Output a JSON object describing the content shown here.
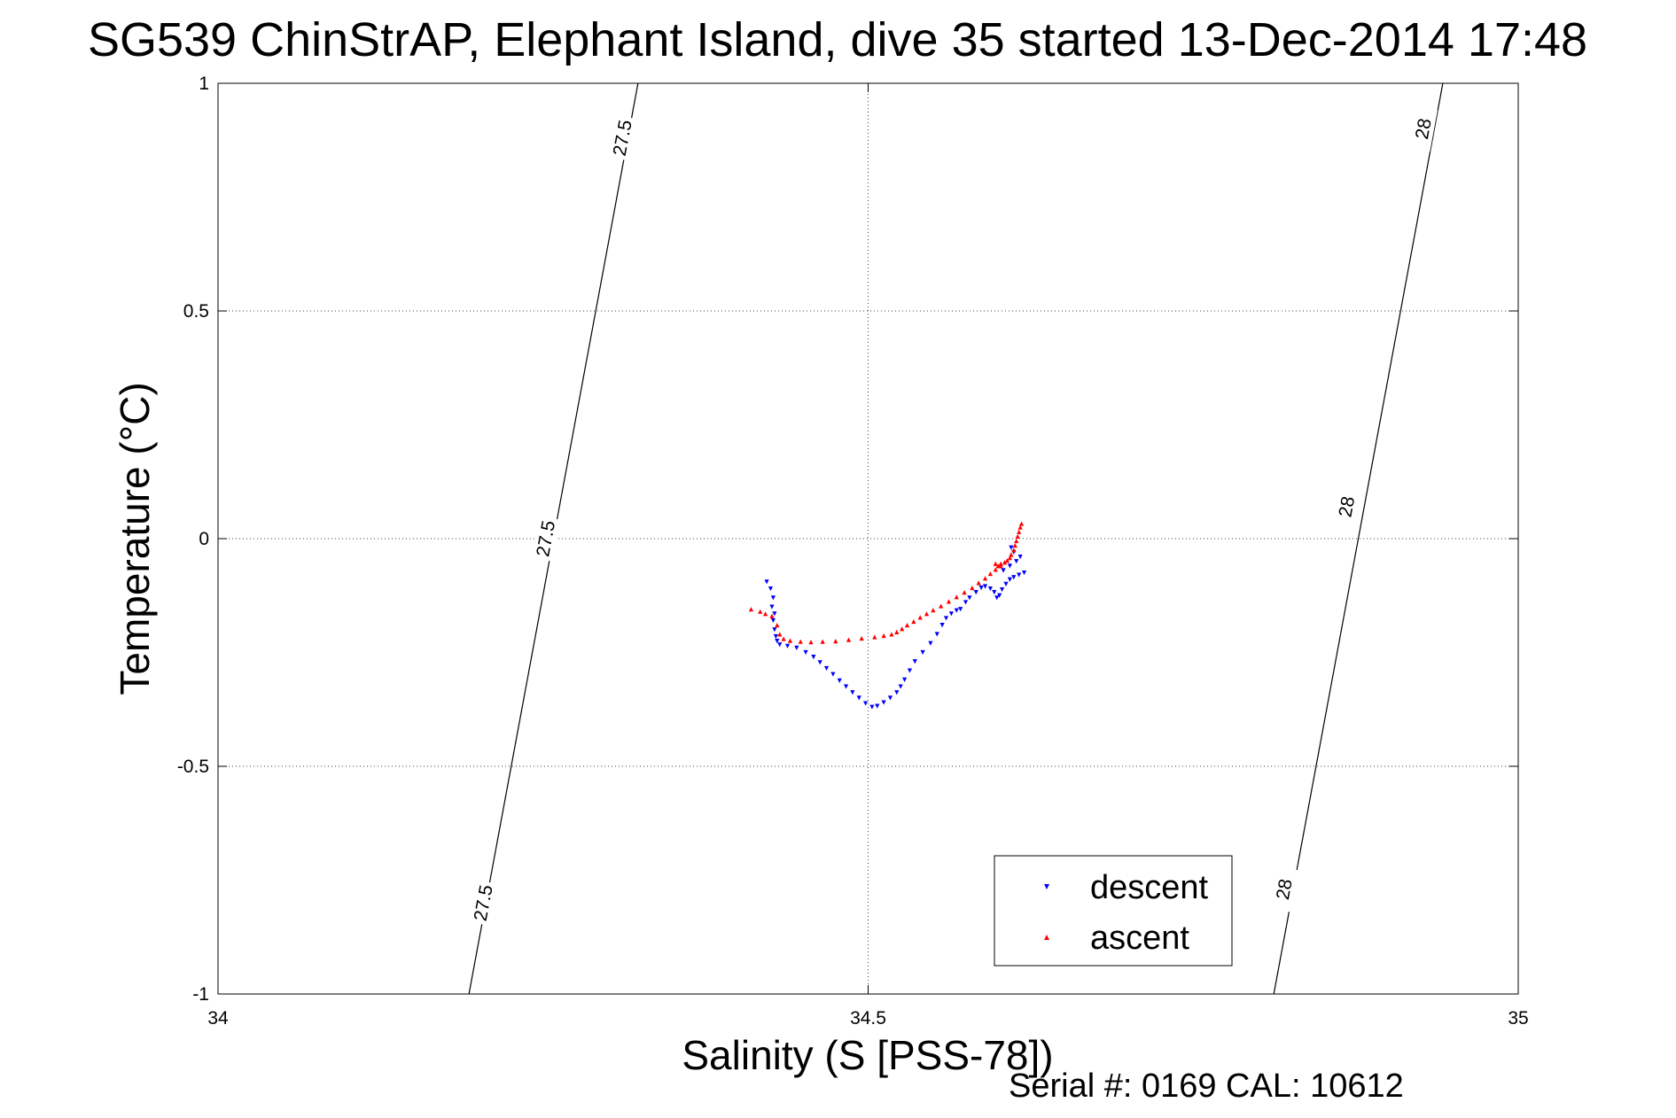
{
  "chart_data": {
    "type": "scatter",
    "title": "SG539 ChinStrAP, Elephant Island, dive 35 started 13-Dec-2014 17:48",
    "xlabel": "Salinity (S [PSS-78])",
    "ylabel": "Temperature (°C)",
    "xlim": [
      34,
      35
    ],
    "ylim": [
      -1,
      1
    ],
    "xticks": [
      "34",
      "34.5",
      "35"
    ],
    "yticks": [
      "-1",
      "-0.5",
      "0",
      "0.5",
      "1"
    ],
    "grid": true,
    "legend_position": "bottom-right",
    "footer": "Serial #: 0169 CAL: 10612",
    "isopycnals": [
      {
        "label": "27.5",
        "points": [
          [
            34.323,
            1.0
          ],
          [
            34.193,
            -1.0
          ]
        ],
        "label_positions": [
          [
            34.311,
            0.88
          ],
          [
            34.252,
            0.0
          ],
          [
            34.204,
            -0.8
          ]
        ]
      },
      {
        "label": "28",
        "points": [
          [
            34.942,
            1.0
          ],
          [
            34.812,
            -1.0
          ]
        ],
        "label_positions": [
          [
            34.927,
            0.9
          ],
          [
            34.868,
            0.07
          ],
          [
            34.82,
            -0.77
          ]
        ]
      }
    ],
    "series": [
      {
        "name": "descent",
        "color": "#0000ff",
        "marker": "triangle-down",
        "points": [
          [
            34.422,
            -0.095
          ],
          [
            34.425,
            -0.11
          ],
          [
            34.427,
            -0.13
          ],
          [
            34.426,
            -0.15
          ],
          [
            34.428,
            -0.165
          ],
          [
            34.427,
            -0.18
          ],
          [
            34.428,
            -0.2
          ],
          [
            34.429,
            -0.215
          ],
          [
            34.43,
            -0.225
          ],
          [
            34.432,
            -0.233
          ],
          [
            34.438,
            -0.236
          ],
          [
            34.445,
            -0.24
          ],
          [
            34.452,
            -0.25
          ],
          [
            34.458,
            -0.26
          ],
          [
            34.463,
            -0.272
          ],
          [
            34.468,
            -0.285
          ],
          [
            34.473,
            -0.298
          ],
          [
            34.478,
            -0.312
          ],
          [
            34.483,
            -0.325
          ],
          [
            34.488,
            -0.338
          ],
          [
            34.493,
            -0.35
          ],
          [
            34.498,
            -0.362
          ],
          [
            34.503,
            -0.37
          ],
          [
            34.507,
            -0.368
          ],
          [
            34.512,
            -0.36
          ],
          [
            34.517,
            -0.35
          ],
          [
            34.522,
            -0.338
          ],
          [
            34.525,
            -0.325
          ],
          [
            34.528,
            -0.31
          ],
          [
            34.532,
            -0.29
          ],
          [
            34.536,
            -0.27
          ],
          [
            34.542,
            -0.25
          ],
          [
            34.548,
            -0.23
          ],
          [
            34.553,
            -0.21
          ],
          [
            34.557,
            -0.19
          ],
          [
            34.56,
            -0.175
          ],
          [
            34.564,
            -0.165
          ],
          [
            34.568,
            -0.158
          ],
          [
            34.571,
            -0.155
          ],
          [
            34.575,
            -0.14
          ],
          [
            34.578,
            -0.13
          ],
          [
            34.583,
            -0.118
          ],
          [
            34.587,
            -0.108
          ],
          [
            34.59,
            -0.105
          ],
          [
            34.594,
            -0.11
          ],
          [
            34.597,
            -0.118
          ],
          [
            34.599,
            -0.13
          ],
          [
            34.601,
            -0.125
          ],
          [
            34.603,
            -0.112
          ],
          [
            34.606,
            -0.1
          ],
          [
            34.609,
            -0.09
          ],
          [
            34.612,
            -0.085
          ],
          [
            34.616,
            -0.08
          ],
          [
            34.62,
            -0.075
          ],
          [
            34.604,
            -0.07
          ],
          [
            34.609,
            -0.06
          ],
          [
            34.614,
            -0.05
          ],
          [
            34.617,
            -0.04
          ],
          [
            34.61,
            -0.02
          ],
          [
            34.612,
            -0.03
          ]
        ]
      },
      {
        "name": "ascent",
        "color": "#ff0000",
        "marker": "triangle-up",
        "points": [
          [
            34.41,
            -0.155
          ],
          [
            34.417,
            -0.16
          ],
          [
            34.421,
            -0.165
          ],
          [
            34.426,
            -0.17
          ],
          [
            34.43,
            -0.19
          ],
          [
            34.432,
            -0.21
          ],
          [
            34.435,
            -0.22
          ],
          [
            34.44,
            -0.224
          ],
          [
            34.448,
            -0.226
          ],
          [
            34.456,
            -0.227
          ],
          [
            34.465,
            -0.226
          ],
          [
            34.475,
            -0.225
          ],
          [
            34.485,
            -0.222
          ],
          [
            34.495,
            -0.219
          ],
          [
            34.505,
            -0.216
          ],
          [
            34.512,
            -0.213
          ],
          [
            34.518,
            -0.21
          ],
          [
            34.522,
            -0.205
          ],
          [
            34.526,
            -0.198
          ],
          [
            34.53,
            -0.19
          ],
          [
            34.535,
            -0.182
          ],
          [
            34.54,
            -0.173
          ],
          [
            34.545,
            -0.165
          ],
          [
            34.55,
            -0.157
          ],
          [
            34.556,
            -0.148
          ],
          [
            34.562,
            -0.138
          ],
          [
            34.568,
            -0.128
          ],
          [
            34.574,
            -0.118
          ],
          [
            34.58,
            -0.108
          ],
          [
            34.585,
            -0.097
          ],
          [
            34.59,
            -0.087
          ],
          [
            34.594,
            -0.077
          ],
          [
            34.598,
            -0.068
          ],
          [
            34.6,
            -0.06
          ],
          [
            34.602,
            -0.055
          ],
          [
            34.605,
            -0.052
          ],
          [
            34.607,
            -0.048
          ],
          [
            34.609,
            -0.042
          ],
          [
            34.61,
            -0.035
          ],
          [
            34.612,
            -0.025
          ],
          [
            34.613,
            -0.015
          ],
          [
            34.614,
            -0.005
          ],
          [
            34.615,
            0.005
          ],
          [
            34.616,
            0.015
          ],
          [
            34.617,
            0.025
          ],
          [
            34.618,
            0.033
          ],
          [
            34.602,
            -0.06
          ],
          [
            34.598,
            -0.055
          ]
        ]
      }
    ]
  }
}
